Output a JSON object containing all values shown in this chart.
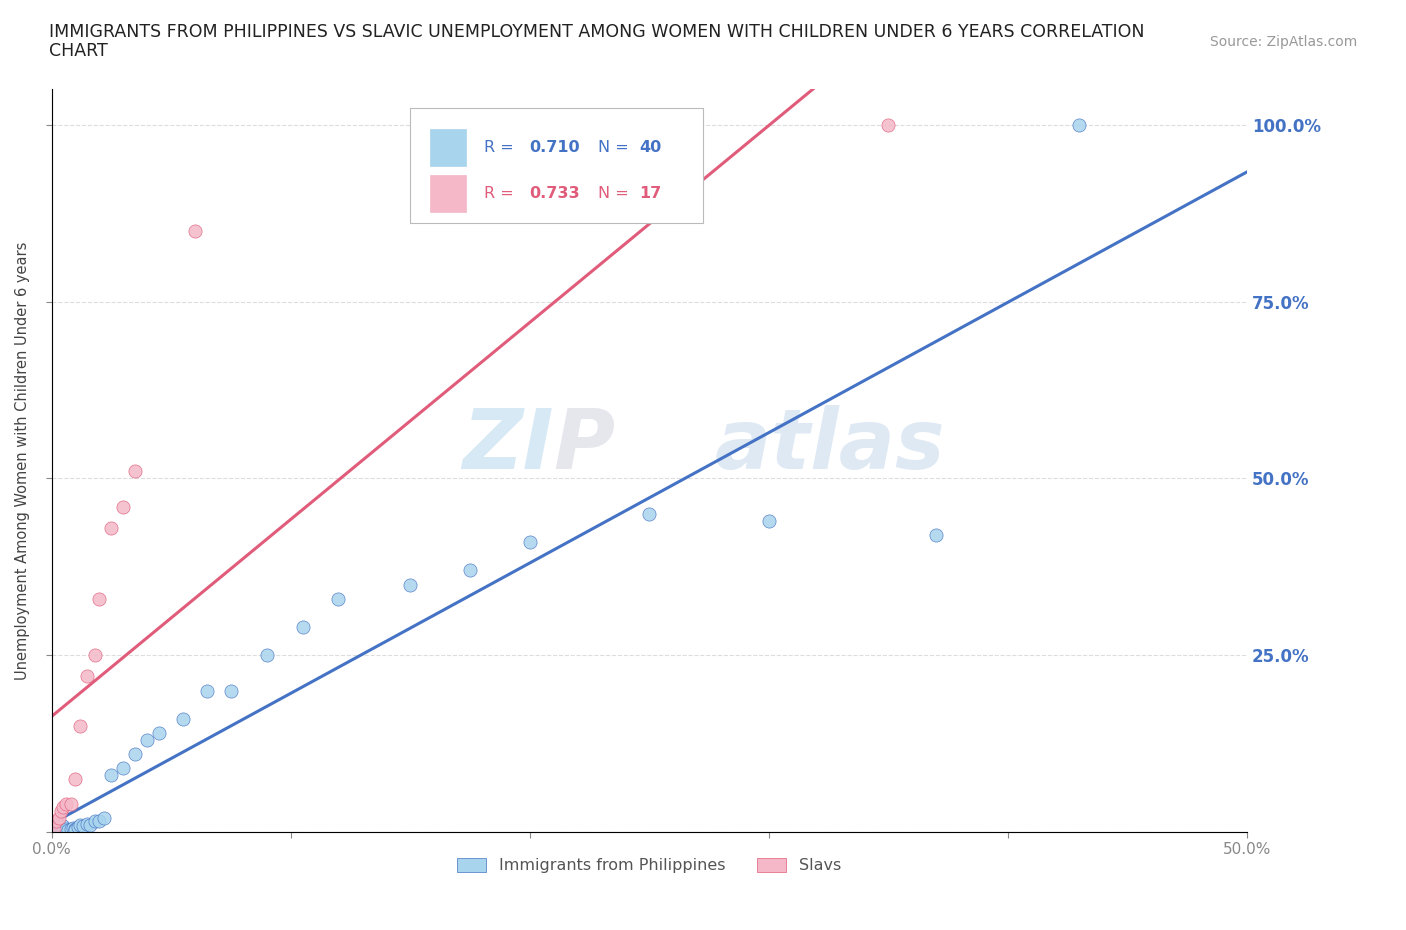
{
  "title_line1": "IMMIGRANTS FROM PHILIPPINES VS SLAVIC UNEMPLOYMENT AMONG WOMEN WITH CHILDREN UNDER 6 YEARS CORRELATION",
  "title_line2": "CHART",
  "source": "Source: ZipAtlas.com",
  "ylabel": "Unemployment Among Women with Children Under 6 years",
  "xlim": [
    0.0,
    0.5
  ],
  "ylim": [
    0.0,
    1.05
  ],
  "philippines_color": "#a8d4ed",
  "slavic_color": "#f4b8c8",
  "philippines_line_color": "#4472C4",
  "slavic_line_color": "#E05C7A",
  "philippines_R": 0.71,
  "philippines_N": 40,
  "slavic_R": 0.733,
  "slavic_N": 17,
  "watermark_ZI": "ZI",
  "watermark_P": "P",
  "watermark_atlas": "atlas",
  "philippines_x": [
    0.001,
    0.002,
    0.003,
    0.004,
    0.004,
    0.005,
    0.005,
    0.006,
    0.006,
    0.007,
    0.008,
    0.009,
    0.01,
    0.01,
    0.011,
    0.012,
    0.013,
    0.015,
    0.016,
    0.018,
    0.02,
    0.022,
    0.025,
    0.03,
    0.035,
    0.04,
    0.045,
    0.055,
    0.065,
    0.075,
    0.09,
    0.105,
    0.12,
    0.15,
    0.175,
    0.2,
    0.25,
    0.3,
    0.37,
    0.43
  ],
  "philippines_y": [
    0.005,
    0.002,
    0.003,
    0.001,
    0.004,
    0.003,
    0.008,
    0.002,
    0.005,
    0.003,
    0.004,
    0.006,
    0.005,
    0.003,
    0.007,
    0.01,
    0.008,
    0.012,
    0.01,
    0.015,
    0.015,
    0.02,
    0.08,
    0.09,
    0.11,
    0.13,
    0.14,
    0.16,
    0.2,
    0.2,
    0.25,
    0.29,
    0.33,
    0.35,
    0.37,
    0.41,
    0.45,
    0.44,
    0.42,
    1.0
  ],
  "slavic_x": [
    0.001,
    0.002,
    0.003,
    0.004,
    0.005,
    0.006,
    0.008,
    0.01,
    0.012,
    0.015,
    0.018,
    0.02,
    0.025,
    0.03,
    0.035,
    0.06,
    0.35
  ],
  "slavic_y": [
    0.005,
    0.015,
    0.02,
    0.03,
    0.035,
    0.04,
    0.04,
    0.075,
    0.15,
    0.22,
    0.25,
    0.33,
    0.43,
    0.46,
    0.51,
    0.85,
    1.0
  ]
}
